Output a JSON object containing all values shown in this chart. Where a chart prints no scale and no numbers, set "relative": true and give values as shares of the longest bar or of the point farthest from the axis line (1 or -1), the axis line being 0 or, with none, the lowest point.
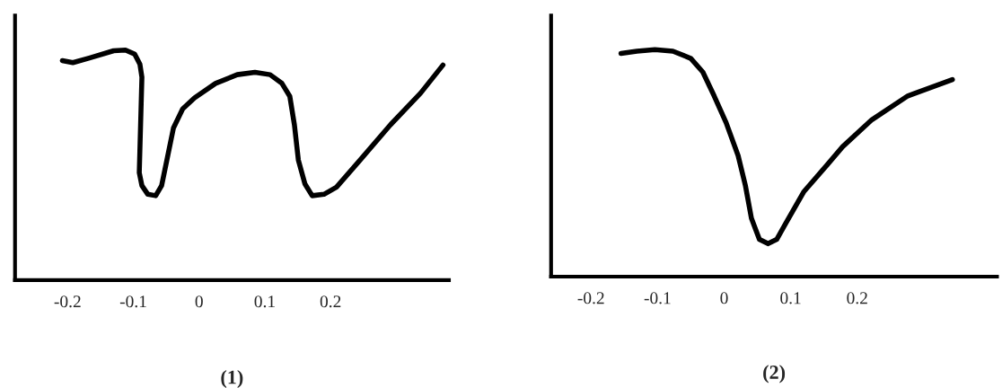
{
  "chart_data": [
    {
      "type": "line",
      "title": "(1)",
      "relative": true,
      "xlim": [
        -0.28,
        0.38
      ],
      "xticks": [
        -0.2,
        -0.1,
        0,
        0.1,
        0.2
      ],
      "grid": false,
      "legend": false,
      "marker": "none",
      "line_style": "solid",
      "series": [
        {
          "color": "#000000",
          "x": [
            -0.208,
            -0.192,
            -0.167,
            -0.13,
            -0.112,
            -0.098,
            -0.09,
            -0.087,
            -0.089,
            -0.091,
            -0.087,
            -0.078,
            -0.066,
            -0.057,
            -0.048,
            -0.039,
            -0.025,
            -0.007,
            0.025,
            0.058,
            0.085,
            0.108,
            0.126,
            0.138,
            0.145,
            0.151,
            0.161,
            0.172,
            0.19,
            0.209,
            0.245,
            0.291,
            0.337,
            0.371
          ],
          "values": [
            0.954,
            0.945,
            0.965,
            0.997,
            1.0,
            0.982,
            0.938,
            0.882,
            0.675,
            0.467,
            0.411,
            0.373,
            0.367,
            0.411,
            0.536,
            0.661,
            0.744,
            0.792,
            0.855,
            0.893,
            0.903,
            0.893,
            0.855,
            0.799,
            0.675,
            0.522,
            0.418,
            0.367,
            0.373,
            0.404,
            0.522,
            0.675,
            0.813,
            0.935
          ]
        }
      ]
    },
    {
      "type": "line",
      "title": "(2)",
      "relative": true,
      "xlim": [
        -0.26,
        0.41
      ],
      "xticks": [
        -0.2,
        -0.1,
        0,
        0.1,
        0.2
      ],
      "grid": false,
      "legend": false,
      "marker": "none",
      "line_style": "solid",
      "series": [
        {
          "color": "#000000",
          "x": [
            -0.155,
            -0.131,
            -0.104,
            -0.077,
            -0.05,
            -0.032,
            -0.015,
            0.003,
            0.021,
            0.032,
            0.041,
            0.053,
            0.066,
            0.079,
            0.093,
            0.12,
            0.155,
            0.178,
            0.222,
            0.276,
            0.343
          ],
          "values": [
            0.983,
            0.993,
            1.0,
            0.993,
            0.961,
            0.901,
            0.796,
            0.678,
            0.533,
            0.401,
            0.257,
            0.164,
            0.145,
            0.164,
            0.237,
            0.375,
            0.493,
            0.572,
            0.691,
            0.796,
            0.868
          ]
        }
      ]
    }
  ]
}
